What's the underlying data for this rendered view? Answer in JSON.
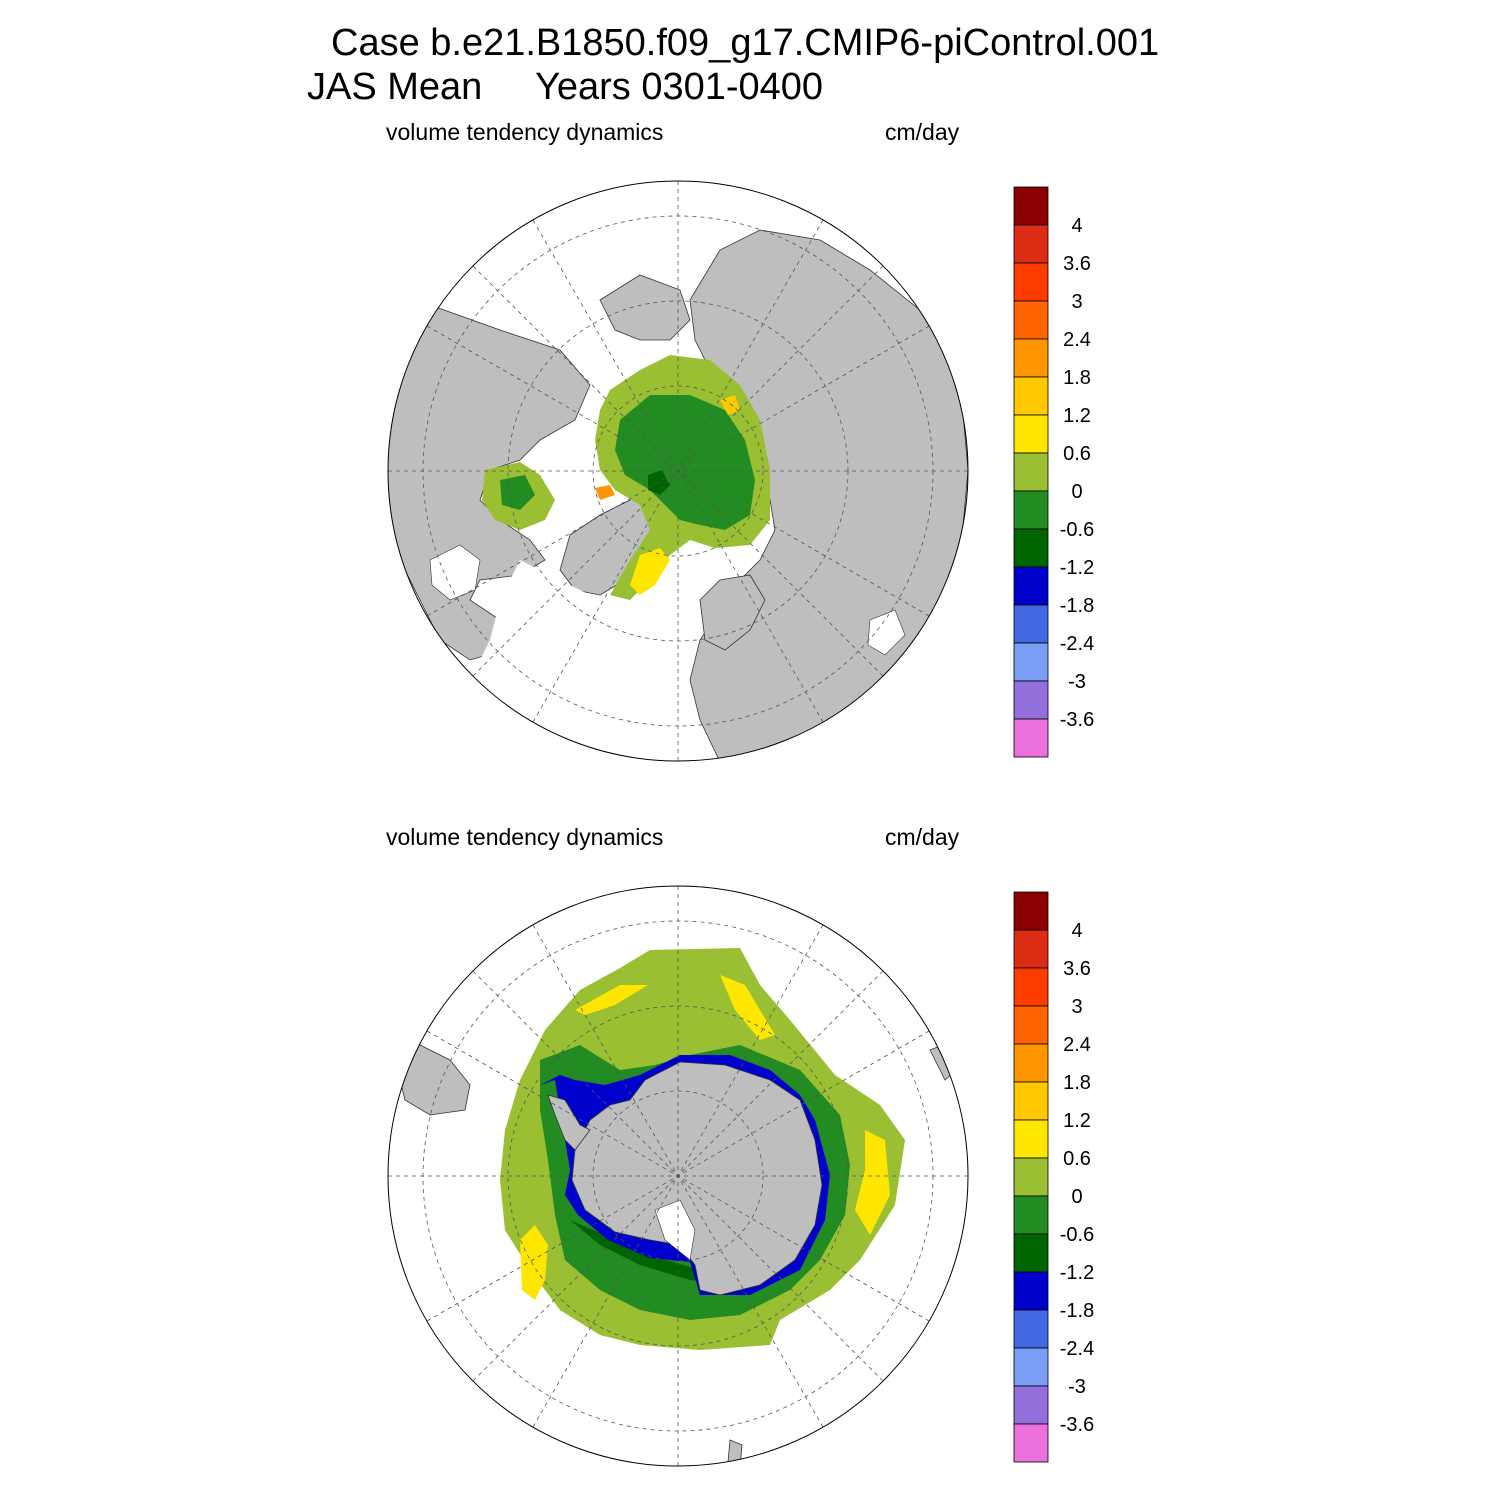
{
  "header": {
    "case_line": "Case b.e21.B1850.f09_g17.CMIP6-piControl.001",
    "season_line": "JAS Mean",
    "years_line": "Years 0301-0400"
  },
  "colorbar": {
    "levels": [
      "4",
      "3.6",
      "3",
      "2.4",
      "1.8",
      "1.2",
      "0.6",
      "0",
      "-0.6",
      "-1.2",
      "-1.8",
      "-2.4",
      "-3",
      "-3.6"
    ],
    "colors": [
      "#8b0000",
      "#dc2c14",
      "#ff3c00",
      "#ff6400",
      "#ff9600",
      "#ffc800",
      "#ffe600",
      "#9abf33",
      "#228b22",
      "#006400",
      "#0000cd",
      "#4169e1",
      "#7a9ef5",
      "#9370db",
      "#ea70dc"
    ]
  },
  "style": {
    "land": "#bebebe",
    "ocean": "#ffffff",
    "grid": "#555555"
  },
  "panels": [
    {
      "id": "north",
      "hemisphere": "Northern Hemisphere",
      "variable": "volume tendency dynamics",
      "units": "cm/day"
    },
    {
      "id": "south",
      "hemisphere": "Southern Hemisphere",
      "variable": "volume tendency dynamics",
      "units": "cm/day"
    }
  ]
}
